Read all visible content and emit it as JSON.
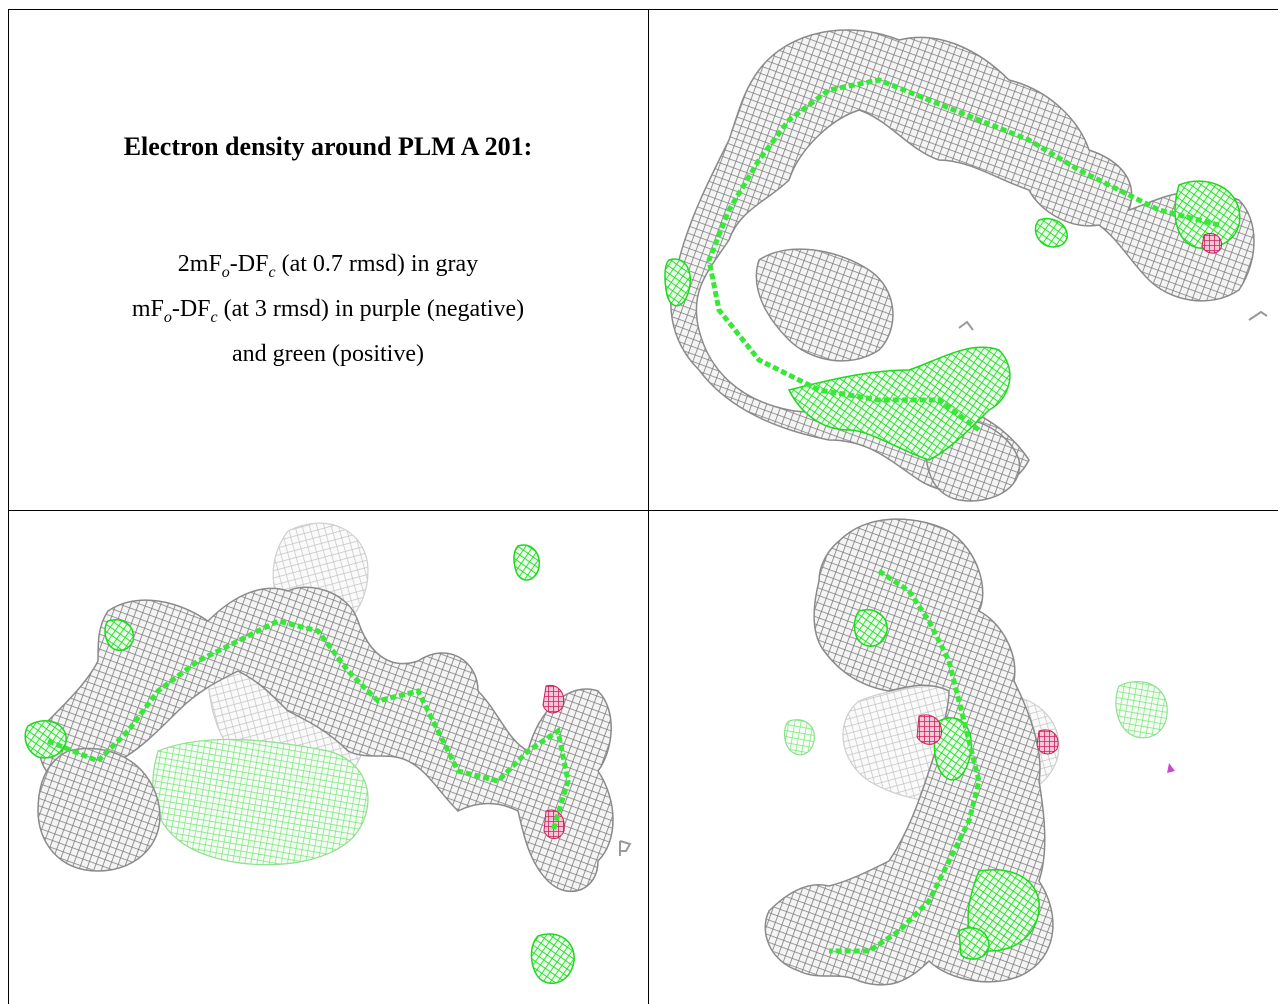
{
  "caption": {
    "title": "Electron density around PLM A 201:",
    "line1_pre": "2mF",
    "line1_sub1": "o",
    "line1_mid": "-DF",
    "line1_sub2": "c",
    "line1_post": " (at 0.7 rmsd) in gray",
    "line2_pre": "mF",
    "line2_sub1": "o",
    "line2_mid": "-DF",
    "line2_sub2": "c",
    "line2_post": " (at 3 rmsd) in purple (negative)",
    "line3": "and green (positive)"
  },
  "colors": {
    "density_2fofc": "#8f8f8f",
    "density_positive": "#22dd22",
    "density_negative": "#cc2266",
    "border": "#000000"
  },
  "views": [
    {
      "name": "view-top-right",
      "label": ""
    },
    {
      "name": "view-bottom-left",
      "label": ""
    },
    {
      "name": "view-bottom-right",
      "label": ""
    }
  ]
}
